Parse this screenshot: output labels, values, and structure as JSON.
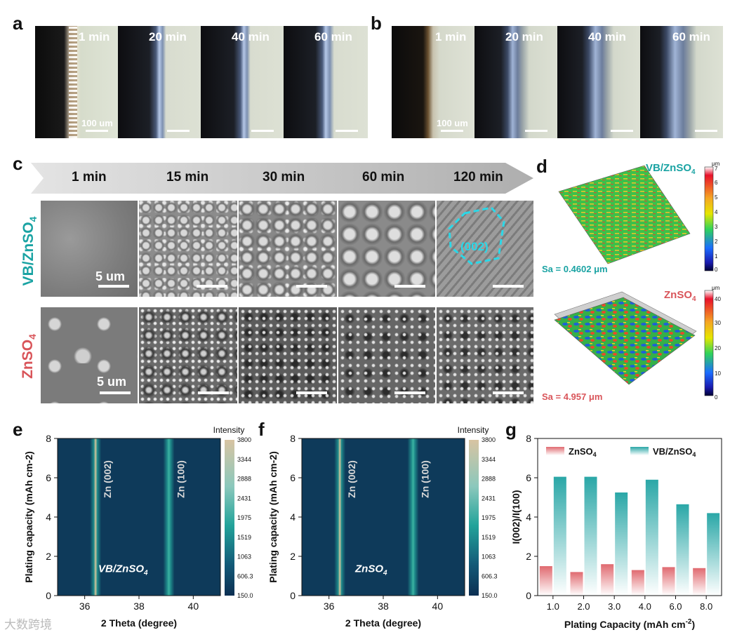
{
  "panel_labels": [
    "a",
    "b",
    "c",
    "d",
    "e",
    "f",
    "g"
  ],
  "panel_a": {
    "tiles": [
      "1 min",
      "20 min",
      "40 min",
      "60 min"
    ],
    "scale_text": "100 um"
  },
  "panel_b": {
    "tiles": [
      "1 min",
      "20 min",
      "40 min",
      "60 min"
    ],
    "scale_text": "100 um"
  },
  "panel_c": {
    "times": [
      "1 min",
      "15 min",
      "30 min",
      "60 min",
      "120 min"
    ],
    "row1_label": "VB/ZnSO",
    "row2_label": "ZnSO",
    "subscript": "4",
    "scale_text": "5 um",
    "facet_label": "(002)",
    "row1_color": "#1aa3a3",
    "row2_color": "#d9555a"
  },
  "panel_d": {
    "top": {
      "title": "VB/ZnSO",
      "sub": "4",
      "sa": "Sa = 0.4602 μm",
      "unit": "μm",
      "ticks": [
        "7",
        "6",
        "5",
        "4",
        "3",
        "2",
        "1",
        "0"
      ],
      "color": "#1aa3a3"
    },
    "bottom": {
      "title": "ZnSO",
      "sub": "4",
      "sa": "Sa = 4.957 μm",
      "unit": "μm",
      "ticks": [
        "40",
        "30",
        "20",
        "10",
        "0"
      ],
      "color": "#d9555a"
    }
  },
  "chart_data": [
    {
      "panel": "e",
      "type": "heatmap",
      "xlabel": "2 Theta (degree)",
      "ylabel": "Plating capacity (mAh cm-2)",
      "x_ticks": [
        "36",
        "38",
        "40"
      ],
      "y_ticks": [
        "0",
        "2",
        "4",
        "6",
        "8"
      ],
      "xlim": [
        35,
        41
      ],
      "ylim": [
        0,
        8
      ],
      "peaks": [
        {
          "label": "Zn (002)",
          "x": 36.4
        },
        {
          "label": "Zn (100)",
          "x": 39.1
        }
      ],
      "inset_label": "VB/ZnSO",
      "inset_sub": "4",
      "colorbar_title": "Intensity",
      "colorbar_ticks": [
        "3800",
        "3344",
        "2888",
        "2431",
        "1975",
        "1519",
        "1063",
        "606.3",
        "150.0"
      ]
    },
    {
      "panel": "f",
      "type": "heatmap",
      "xlabel": "2 Theta (degree)",
      "ylabel": "Plating capacity (mAh cm-2)",
      "x_ticks": [
        "36",
        "38",
        "40"
      ],
      "y_ticks": [
        "0",
        "2",
        "4",
        "6",
        "8"
      ],
      "xlim": [
        35,
        41
      ],
      "ylim": [
        0,
        8
      ],
      "peaks": [
        {
          "label": "Zn (002)",
          "x": 36.4
        },
        {
          "label": "Zn (100)",
          "x": 39.1
        }
      ],
      "inset_label": "ZnSO",
      "inset_sub": "4",
      "colorbar_title": "Intensity",
      "colorbar_ticks": [
        "3800",
        "3344",
        "2888",
        "2431",
        "1975",
        "1519",
        "1063",
        "606.3",
        "150.0"
      ]
    },
    {
      "panel": "g",
      "type": "bar",
      "categories": [
        "1.0",
        "2.0",
        "3.0",
        "4.0",
        "6.0",
        "8.0"
      ],
      "series": [
        {
          "name": "ZnSO4",
          "values": [
            1.5,
            1.2,
            1.6,
            1.3,
            1.45,
            1.4
          ],
          "color": "#e06a70"
        },
        {
          "name": "VB/ZnSO4",
          "values": [
            6.05,
            6.05,
            5.25,
            5.9,
            4.65,
            4.2
          ],
          "color": "#2aa7a7"
        }
      ],
      "legend": [
        {
          "text": "ZnSO",
          "sub": "4"
        },
        {
          "text": "VB/ZnSO",
          "sub": "4"
        }
      ],
      "xlabel": "Plating Capacity (mAh cm",
      "xlabel_sup": "-2",
      "xlabel_end": ")",
      "ylabel": "I(002)/I(100)",
      "ylim": [
        0,
        8
      ],
      "y_ticks": [
        "0",
        "2",
        "4",
        "6",
        "8"
      ],
      "legend_position": "top"
    }
  ],
  "watermark": "大数跨境"
}
